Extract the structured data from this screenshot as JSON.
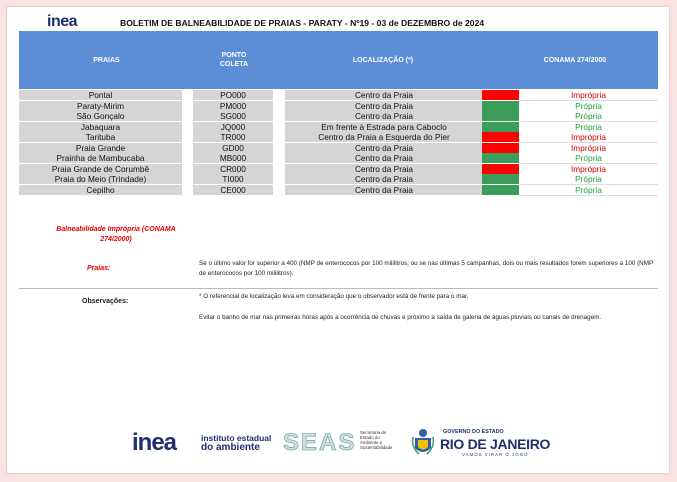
{
  "header": {
    "logo": "inea",
    "title": "BOLETIM DE BALNEABILIDADE DE PRAIAS -  PARATY - Nº19 - 03  de DEZEMBRO de 2024"
  },
  "table": {
    "headers": {
      "praias": "PRAIAS",
      "ponto_coleta": "PONTO COLETA",
      "localizacao": "LOCALIZAÇÃO (*)",
      "conama": "CONAMA 274/2000"
    },
    "rows": [
      {
        "praia": "Pontal",
        "codigo": "PO000",
        "localizacao": "Centro da Praia",
        "status_color": "#ff0000",
        "classificacao": "Imprópria"
      },
      {
        "praia": "Paraty-Mirim",
        "codigo": "PM000",
        "localizacao": "Centro da Praia",
        "status_color": "#3a9d5a",
        "classificacao": "Própria"
      },
      {
        "praia": "São Gonçalo",
        "codigo": "SG000",
        "localizacao": "Centro da Praia",
        "status_color": "#3a9d5a",
        "classificacao": "Própria"
      },
      {
        "praia": "Jabaquara",
        "codigo": "JQ000",
        "localizacao": "Em frente à Estrada para Caboclo",
        "status_color": "#3a9d5a",
        "classificacao": "Própria"
      },
      {
        "praia": "Tarituba",
        "codigo": "TR000",
        "localizacao": "Centro da Praia a Esquerda do Pier",
        "status_color": "#ff0000",
        "classificacao": "Imprópria"
      },
      {
        "praia": "Praia Grande",
        "codigo": "GD00",
        "localizacao": "Centro da Praia",
        "status_color": "#ff0000",
        "classificacao": "Imprópria"
      },
      {
        "praia": "Prainha de Mambucaba",
        "codigo": "MB000",
        "localizacao": "Centro da Praia",
        "status_color": "#3a9d5a",
        "classificacao": "Própria"
      },
      {
        "praia": "Praia Grande de Corumbê",
        "codigo": "CR000",
        "localizacao": "Centro da Praia",
        "status_color": "#ff0000",
        "classificacao": "Imprópria"
      },
      {
        "praia": "Praia do Meio (Trindade)",
        "codigo": "TI000",
        "localizacao": "Centro da Praia",
        "status_color": "#3a9d5a",
        "classificacao": "Própria"
      },
      {
        "praia": "Cepilho",
        "codigo": "CE000",
        "localizacao": "Centro da Praia",
        "status_color": "#3a9d5a",
        "classificacao": "Própria"
      }
    ]
  },
  "notes": {
    "balneabilidade_impropria": "Balneabilidade Imprópria (CONAMA 274/2000)",
    "praias_label": "Praias:",
    "praias_text": "Se o último valor for superior a 400 (NMP de enterococos por 100 mililitros; ou se nas últimas 5 campanhas, dois ou mais resultados forem superiores a 100 (NMP de enterococos por 100 mililitros).",
    "observacoes_label": "Observações:",
    "obs_1": "* O referencial de localização leva em consideração que o observador está de frente para o mar.",
    "obs_2": "Evitar o banho de mar nas primeiras horas após a ocorrência de chuvas e próximo a saída de galeria de águas pluviais ou canais de drenagem."
  },
  "footer": {
    "inea": "inea",
    "inea_sub_1": "instituto estadual",
    "inea_sub_2": "do ambiente",
    "seas": "SEAS",
    "seas_sub": [
      "Secretaria de",
      "Estado do",
      "Ambiente e",
      "Sustentabilidade"
    ],
    "gov": "GOVERNO DO ESTADO",
    "rio": "RIO DE JANEIRO",
    "vamos": "VAMOS VIRAR O JOGO"
  },
  "colors": {
    "header_blue": "#5b8ed6",
    "impropria_red": "#d40000",
    "propria_green": "#1fa33a",
    "brand_navy": "#1f2f6e"
  }
}
